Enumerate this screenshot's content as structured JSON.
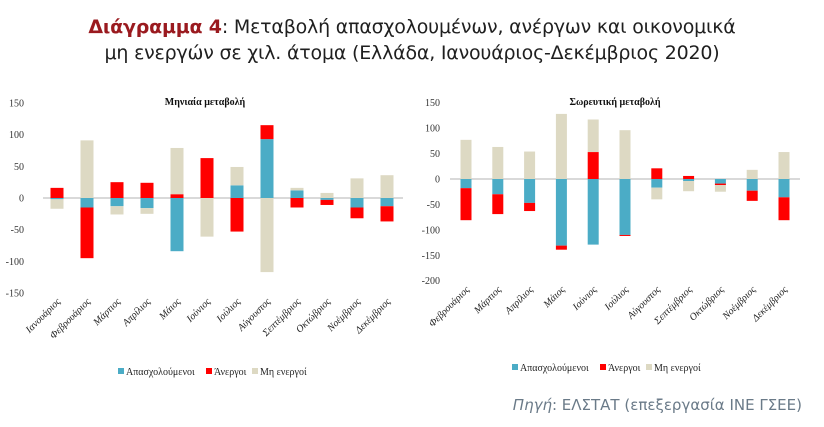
{
  "title": {
    "lead": "Διάγραμμα 4",
    "rest_line1": ": Μεταβολή απασχολουμένων, ανέργων και οικονομικά",
    "line2": "μη ενεργών σε χιλ. άτομα (Ελλάδα, Ιανουάριος-Δεκέμβριος 2020)"
  },
  "source": {
    "label": "Πηγή",
    "text": ": ΕΛΣΤΑΤ (επεξεργασία ΙΝΕ ΓΣΕΕ)"
  },
  "colors": {
    "employed": "#4bacc6",
    "unemployed": "#ff0000",
    "inactive": "#ddd9c3",
    "zero_line": "#d9d9d9",
    "title_accent": "#9a1a1f"
  },
  "chart_data": [
    {
      "type": "bar",
      "stacked": true,
      "title": "Μηνιαία μεταβολή",
      "categories": [
        "Ιανουάριος",
        "Φεβρουάριος",
        "Μάρτιος",
        "Απρίλιος",
        "Μάιος",
        "Ιούνιος",
        "Ιούλιος",
        "Αύγουστος",
        "Σεπτέμβριος",
        "Οκτώβριος",
        "Νοέμβριος",
        "Δεκέμβριος"
      ],
      "series": [
        {
          "name": "Απασχολούμενοι",
          "key": "employed",
          "values": [
            -2,
            -15,
            -13,
            -16,
            -84,
            0,
            20,
            93,
            12,
            -3,
            -15,
            -13
          ]
        },
        {
          "name": "Άνεργοι",
          "key": "unemployed",
          "values": [
            16,
            -80,
            25,
            24,
            6,
            63,
            -53,
            22,
            -15,
            -8,
            -17,
            -24
          ]
        },
        {
          "name": "Μη ενεργοί",
          "key": "inactive",
          "values": [
            -15,
            91,
            -13,
            -9,
            73,
            -61,
            29,
            -117,
            4,
            8,
            31,
            36
          ]
        }
      ],
      "yticks": [
        "150",
        "100",
        "50",
        "0",
        "-50",
        "-100",
        "-150"
      ],
      "ylim": [
        -150,
        150
      ],
      "legend": "bottom",
      "grid": false
    },
    {
      "type": "bar",
      "stacked": true,
      "title": "Σωρευτική μεταβολή",
      "categories": [
        "Φεβρουάριος",
        "Μάρτιος",
        "Απρίλιος",
        "Μάιος",
        "Ιούνιος",
        "Ιούλιος",
        "Αύγουστος",
        "Σεπτέμβριος",
        "Οκτώβριος",
        "Νοέμβριος",
        "Δεκέμβριος"
      ],
      "series": [
        {
          "name": "Απασχολούμενοι",
          "key": "employed",
          "values": [
            -18,
            -30,
            -47,
            -131,
            -129,
            -110,
            -17,
            -4,
            -9,
            -23,
            -36
          ]
        },
        {
          "name": "Άνεργοι",
          "key": "unemployed",
          "values": [
            -63,
            -39,
            -16,
            -8,
            53,
            -2,
            21,
            6,
            -3,
            -20,
            -45
          ]
        },
        {
          "name": "Μη ενεργοί",
          "key": "inactive",
          "values": [
            77,
            63,
            54,
            128,
            64,
            96,
            -23,
            -20,
            -13,
            18,
            53
          ]
        }
      ],
      "yticks": [
        "150",
        "100",
        "50",
        "0",
        "-50",
        "-100",
        "-150",
        "-200"
      ],
      "ylim": [
        -200,
        150
      ],
      "legend": "bottom",
      "grid": false
    }
  ]
}
